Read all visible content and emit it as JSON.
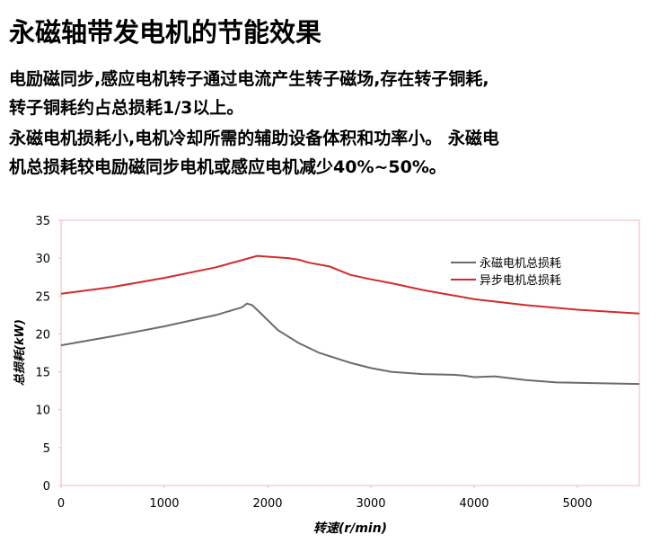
{
  "title": "永磁轴带发电机的节能效果",
  "lines": [
    "电励磁同步,感应电机转子通过电流产生转子磁场,存在转子铜耗,",
    "转子铜耗约占总损耗1/3以上。",
    "永磁电机损耗小,电机冷却所需的辅助设备体积和功率小。 永磁电",
    "机总损耗较电励磁同步电机或感应电机减少40%~50%。"
  ],
  "chart_data": {
    "type": "line",
    "xlabel": "转速(r/min)",
    "ylabel": "总损耗(kW)",
    "xlim": [
      0,
      5600
    ],
    "ylim": [
      0,
      35
    ],
    "xticks": [
      0,
      1000,
      2000,
      3000,
      4000,
      5000
    ],
    "yticks": [
      0,
      5,
      10,
      15,
      20,
      25,
      30,
      35
    ],
    "grid": false,
    "legend": "upper right",
    "series": [
      {
        "name": "永磁电机总损耗",
        "color": "#6b6b6b",
        "x": [
          0,
          250,
          500,
          1000,
          1500,
          1750,
          1800,
          1850,
          1950,
          2100,
          2300,
          2500,
          2800,
          3000,
          3200,
          3500,
          3800,
          3900,
          4000,
          4200,
          4500,
          4800,
          5200,
          5600
        ],
        "values": [
          18.5,
          19.1,
          19.7,
          21.0,
          22.5,
          23.5,
          24.0,
          23.8,
          22.5,
          20.5,
          18.8,
          17.5,
          16.2,
          15.5,
          15.0,
          14.7,
          14.6,
          14.5,
          14.3,
          14.4,
          13.9,
          13.6,
          13.5,
          13.4
        ]
      },
      {
        "name": "异步电机总损耗",
        "color": "#d42a2a",
        "x": [
          0,
          500,
          1000,
          1500,
          1900,
          2000,
          2200,
          2300,
          2400,
          2600,
          2800,
          3000,
          3200,
          3500,
          4000,
          4500,
          5000,
          5600
        ],
        "values": [
          25.3,
          26.2,
          27.4,
          28.8,
          30.3,
          30.2,
          30.0,
          29.8,
          29.4,
          28.9,
          27.8,
          27.2,
          26.7,
          25.8,
          24.6,
          23.8,
          23.2,
          22.7
        ]
      }
    ]
  }
}
